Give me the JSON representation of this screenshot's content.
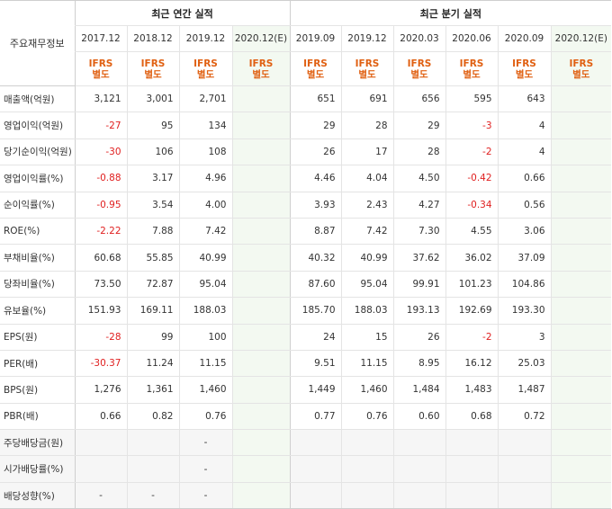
{
  "corner_label": "주요재무정보",
  "groups": {
    "annual": "최근 연간 실적",
    "quarterly": "최근 분기 실적"
  },
  "periods": [
    "2017.12",
    "2018.12",
    "2019.12",
    "2020.12(E)",
    "2019.09",
    "2019.12",
    "2020.03",
    "2020.06",
    "2020.09",
    "2020.12(E)"
  ],
  "basis": [
    "IFRS\n별도",
    "IFRS\n별도",
    "IFRS\n별도",
    "IFRS\n별도",
    "IFRS\n별도",
    "IFRS\n별도",
    "IFRS\n별도",
    "IFRS\n별도",
    "IFRS\n별도",
    "IFRS\n별도"
  ],
  "rows": [
    {
      "label": "매출액(억원)",
      "values": [
        "3,121",
        "3,001",
        "2,701",
        "",
        "651",
        "691",
        "656",
        "595",
        "643",
        ""
      ]
    },
    {
      "label": "영업이익(억원)",
      "values": [
        "-27",
        "95",
        "134",
        "",
        "29",
        "28",
        "29",
        "-3",
        "4",
        ""
      ]
    },
    {
      "label": "당기순이익(억원)",
      "values": [
        "-30",
        "106",
        "108",
        "",
        "26",
        "17",
        "28",
        "-2",
        "4",
        ""
      ]
    },
    {
      "label": "영업이익률(%)",
      "values": [
        "-0.88",
        "3.17",
        "4.96",
        "",
        "4.46",
        "4.04",
        "4.50",
        "-0.42",
        "0.66",
        ""
      ]
    },
    {
      "label": "순이익률(%)",
      "values": [
        "-0.95",
        "3.54",
        "4.00",
        "",
        "3.93",
        "2.43",
        "4.27",
        "-0.34",
        "0.56",
        ""
      ]
    },
    {
      "label": "ROE(%)",
      "values": [
        "-2.22",
        "7.88",
        "7.42",
        "",
        "8.87",
        "7.42",
        "7.30",
        "4.55",
        "3.06",
        ""
      ]
    },
    {
      "label": "부채비율(%)",
      "values": [
        "60.68",
        "55.85",
        "40.99",
        "",
        "40.32",
        "40.99",
        "37.62",
        "36.02",
        "37.09",
        ""
      ]
    },
    {
      "label": "당좌비율(%)",
      "values": [
        "73.50",
        "72.87",
        "95.04",
        "",
        "87.60",
        "95.04",
        "99.91",
        "101.23",
        "104.86",
        ""
      ]
    },
    {
      "label": "유보율(%)",
      "values": [
        "151.93",
        "169.11",
        "188.03",
        "",
        "185.70",
        "188.03",
        "193.13",
        "192.69",
        "193.30",
        ""
      ]
    },
    {
      "label": "EPS(원)",
      "values": [
        "-28",
        "99",
        "100",
        "",
        "24",
        "15",
        "26",
        "-2",
        "3",
        ""
      ]
    },
    {
      "label": "PER(배)",
      "values": [
        "-30.37",
        "11.24",
        "11.15",
        "",
        "9.51",
        "11.15",
        "8.95",
        "16.12",
        "25.03",
        ""
      ]
    },
    {
      "label": "BPS(원)",
      "values": [
        "1,276",
        "1,361",
        "1,460",
        "",
        "1,449",
        "1,460",
        "1,484",
        "1,483",
        "1,487",
        ""
      ]
    },
    {
      "label": "PBR(배)",
      "values": [
        "0.66",
        "0.82",
        "0.76",
        "",
        "0.77",
        "0.76",
        "0.60",
        "0.68",
        "0.72",
        ""
      ]
    },
    {
      "label": "주당배당금(원)",
      "values": [
        "",
        "",
        "-",
        "",
        "",
        "",
        "",
        "",
        "",
        ""
      ]
    },
    {
      "label": "시가배당률(%)",
      "values": [
        "",
        "",
        "-",
        "",
        "",
        "",
        "",
        "",
        "",
        ""
      ]
    },
    {
      "label": "배당성향(%)",
      "values": [
        "-",
        "-",
        "-",
        "",
        "",
        "",
        "",
        "",
        "",
        ""
      ]
    }
  ],
  "colors": {
    "negative": "#e02020",
    "basis": "#e06012",
    "estimate_bg": "#f3f9f1"
  }
}
